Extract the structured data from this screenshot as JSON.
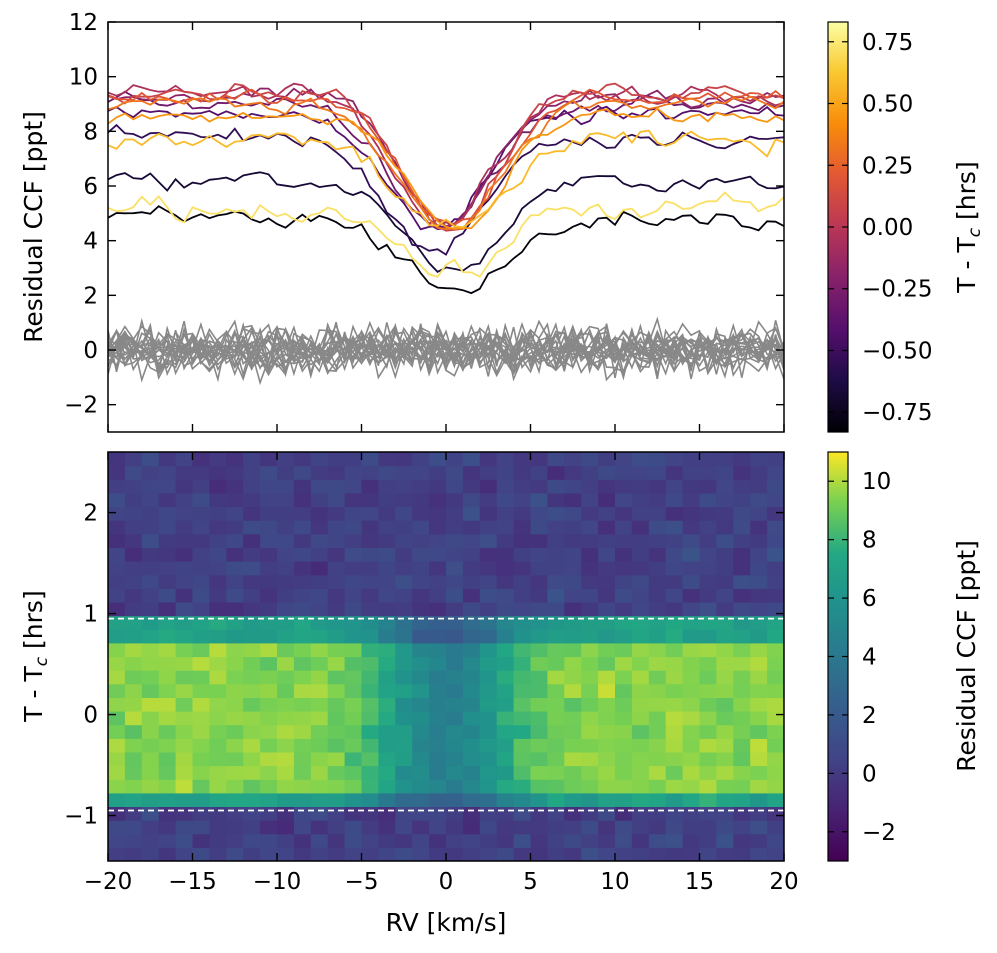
{
  "chart_data": [
    {
      "type": "line",
      "ylabel": "Residual CCF [ppt]",
      "xlim": [
        -20,
        20
      ],
      "ylim": [
        -3,
        12
      ],
      "x_ticks": [
        -20,
        -15,
        -10,
        -5,
        0,
        5,
        10,
        15,
        20
      ],
      "y_ticks": [
        -2,
        0,
        2,
        4,
        6,
        8,
        10,
        12
      ],
      "y_tick_labels": [
        "−2",
        "0",
        "2",
        "4",
        "6",
        "8",
        "10",
        "12"
      ],
      "colorbar": {
        "label": "T - T",
        "label_subscript": "c",
        "label_suffix": " [hrs]",
        "range": [
          -0.83,
          0.83
        ],
        "ticks": [
          -0.75,
          -0.5,
          -0.25,
          0.0,
          0.25,
          0.5,
          0.75
        ],
        "tick_labels": [
          "−0.75",
          "−0.50",
          "−0.25",
          "0.00",
          "0.25",
          "0.50",
          "0.75"
        ],
        "colormap": "inferno"
      },
      "in_transit_series": [
        {
          "t": -0.8,
          "baseline": 4.8,
          "depth": 2.6,
          "profile_width": 3.0,
          "center": 0.8,
          "noise": 0.45
        },
        {
          "t": -0.67,
          "baseline": 6.2,
          "depth": 3.3,
          "profile_width": 2.9,
          "center": 0.5,
          "noise": 0.35
        },
        {
          "t": -0.55,
          "baseline": 7.8,
          "depth": 4.2,
          "profile_width": 2.8,
          "center": -0.8,
          "noise": 0.4
        },
        {
          "t": -0.42,
          "baseline": 8.6,
          "depth": 4.3,
          "profile_width": 2.7,
          "center": -0.5,
          "noise": 0.35
        },
        {
          "t": -0.3,
          "baseline": 9.0,
          "depth": 4.6,
          "profile_width": 2.8,
          "center": -0.3,
          "noise": 0.35
        },
        {
          "t": -0.18,
          "baseline": 9.3,
          "depth": 4.7,
          "profile_width": 2.7,
          "center": 0.0,
          "noise": 0.35
        },
        {
          "t": -0.05,
          "baseline": 9.4,
          "depth": 5.0,
          "profile_width": 2.8,
          "center": -0.2,
          "noise": 0.4
        },
        {
          "t": 0.08,
          "baseline": 9.5,
          "depth": 5.2,
          "profile_width": 2.7,
          "center": 0.3,
          "noise": 0.35
        },
        {
          "t": 0.2,
          "baseline": 9.3,
          "depth": 4.9,
          "profile_width": 2.8,
          "center": 0.5,
          "noise": 0.35
        },
        {
          "t": 0.33,
          "baseline": 9.0,
          "depth": 4.6,
          "profile_width": 2.8,
          "center": 0.2,
          "noise": 0.35
        },
        {
          "t": 0.45,
          "baseline": 8.5,
          "depth": 4.2,
          "profile_width": 2.7,
          "center": 0.7,
          "noise": 0.35
        },
        {
          "t": 0.58,
          "baseline": 7.6,
          "depth": 3.4,
          "profile_width": 2.8,
          "center": 0.3,
          "noise": 0.45
        },
        {
          "t": 0.72,
          "baseline": 5.2,
          "depth": 2.5,
          "profile_width": 2.8,
          "center": 0.3,
          "noise": 0.5
        }
      ],
      "out_of_transit_series": {
        "count": 20,
        "color": "#888888",
        "noise": 0.7,
        "baseline": 0.0
      }
    },
    {
      "type": "heatmap",
      "xlabel": "RV [km/s]",
      "ylabel": "T - T",
      "ylabel_subscript": "c",
      "ylabel_suffix": " [hrs]",
      "xlim": [
        -20,
        20
      ],
      "ylim": [
        -1.45,
        2.6
      ],
      "x_ticks": [
        -20,
        -15,
        -10,
        -5,
        0,
        5,
        10,
        15,
        20
      ],
      "x_tick_labels": [
        "−20",
        "−15",
        "−10",
        "−5",
        "0",
        "5",
        "10",
        "15",
        "20"
      ],
      "y_ticks": [
        -1,
        0,
        1,
        2
      ],
      "y_tick_labels": [
        "−1",
        "0",
        "1",
        "2"
      ],
      "transit_window": [
        -0.95,
        0.95
      ],
      "in_transit_level": 9.5,
      "in_transit_depth": 5.0,
      "row_step_hrs": 0.135,
      "column_step_kms": 1.0,
      "colorbar": {
        "label": "Residual CCF [ppt]",
        "range": [
          -3.0,
          11.0
        ],
        "ticks": [
          -2,
          0,
          2,
          4,
          6,
          8,
          10
        ],
        "tick_labels": [
          "−2",
          "0",
          "2",
          "4",
          "6",
          "8",
          "10"
        ],
        "colormap": "viridis"
      }
    }
  ]
}
